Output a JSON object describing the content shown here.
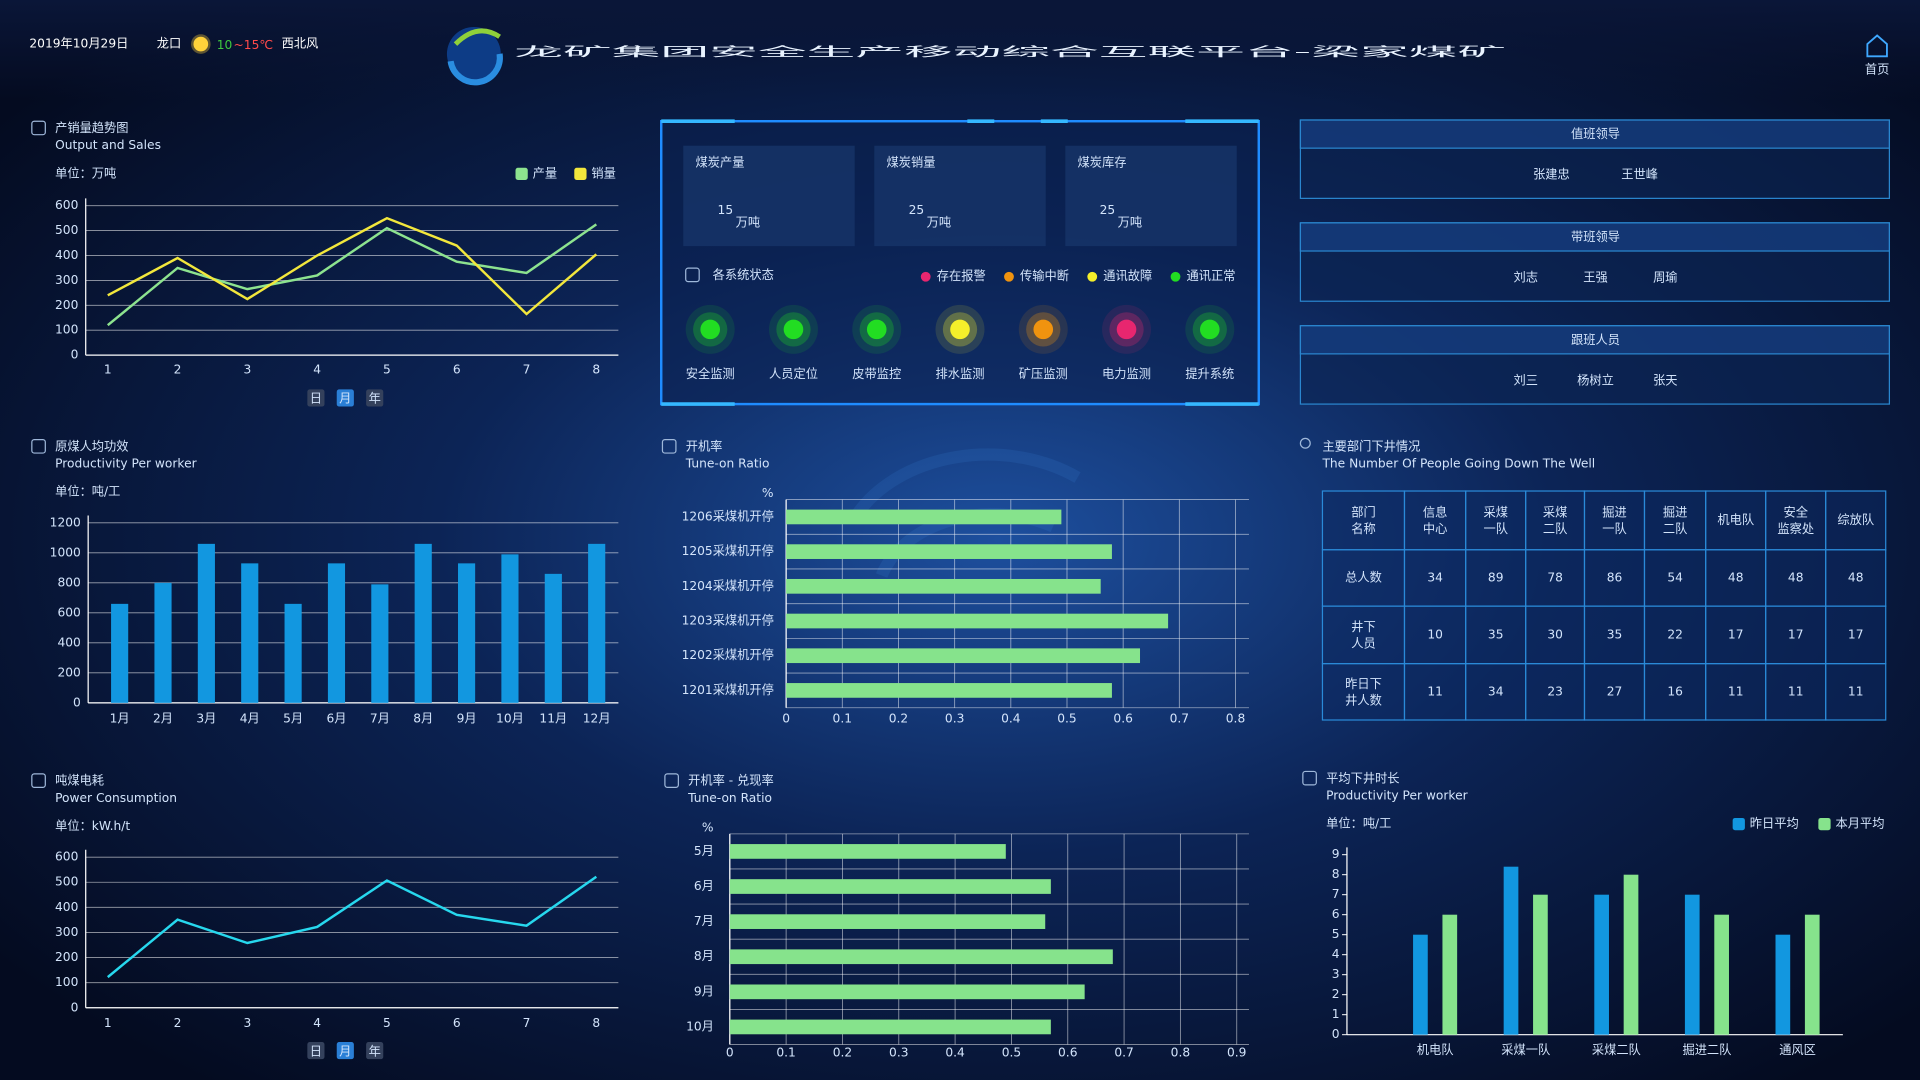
{
  "header": {
    "date": "2019年10月29日",
    "city": "龙口",
    "temp_low": "10",
    "temp_high": "~15℃",
    "wind": "西北风",
    "title": "龙矿集团安全生产移动综合互联平台-梁家煤矿",
    "home": "首页"
  },
  "stats": [
    {
      "label": "煤炭产量",
      "value": 15,
      "unit": "万吨"
    },
    {
      "label": "煤炭销量",
      "value": 25,
      "unit": "万吨"
    },
    {
      "label": "煤炭库存",
      "value": 25,
      "unit": "万吨"
    }
  ],
  "status": {
    "title": "各系统状态",
    "legend": [
      {
        "name": "存在报警",
        "color": "#e8266f"
      },
      {
        "name": "传输中断",
        "color": "#f0930f"
      },
      {
        "name": "通讯故障",
        "color": "#f5ef2a"
      },
      {
        "name": "通讯正常",
        "color": "#22dd22"
      }
    ],
    "systems": [
      {
        "name": "安全监测",
        "color": "#22dd22"
      },
      {
        "name": "人员定位",
        "color": "#22dd22"
      },
      {
        "name": "皮带监控",
        "color": "#22dd22"
      },
      {
        "name": "排水监测",
        "color": "#f5ef2a"
      },
      {
        "name": "矿压监测",
        "color": "#f0930f"
      },
      {
        "name": "电力监测",
        "color": "#e8266f"
      },
      {
        "name": "提升系统",
        "color": "#22dd22"
      }
    ]
  },
  "duty": [
    {
      "title": "值班领导",
      "names": [
        "张建忠",
        "王世峰"
      ]
    },
    {
      "title": "带班领导",
      "names": [
        "刘志",
        "王强",
        "周瑜"
      ]
    },
    {
      "title": "跟班人员",
      "names": [
        "刘三",
        "杨树立",
        "张天"
      ]
    }
  ],
  "dept_table": {
    "title": "主要部门下井情况",
    "subtitle": "The Number Of People Going Down The Well",
    "header": [
      "部门名称",
      "信息中心",
      "采煤一队",
      "采煤二队",
      "掘进一队",
      "掘进二队",
      "机电队",
      "安全监察处",
      "综放队"
    ],
    "rows": [
      [
        "总人数",
        34,
        89,
        78,
        86,
        54,
        48,
        48,
        48
      ],
      [
        "井下人员",
        10,
        35,
        30,
        35,
        22,
        17,
        17,
        17
      ],
      [
        "昨日下井人数",
        11,
        34,
        23,
        27,
        16,
        11,
        11,
        11
      ]
    ]
  },
  "chart_data": [
    {
      "type": "line",
      "title": "产销量趋势图",
      "subtitle": "Output and Sales",
      "unit": "单位：万吨",
      "categories": [
        "1",
        "2",
        "3",
        "4",
        "5",
        "6",
        "7",
        "8"
      ],
      "series": [
        {
          "name": "产量",
          "color": "#8de38f",
          "values": [
            120,
            350,
            265,
            320,
            510,
            375,
            330,
            525
          ]
        },
        {
          "name": "销量",
          "color": "#f2e73c",
          "values": [
            240,
            390,
            225,
            400,
            550,
            440,
            165,
            405
          ]
        }
      ],
      "ylim": [
        0,
        600
      ],
      "yticks": [
        0,
        100,
        200,
        300,
        400,
        500,
        600
      ],
      "grid": true,
      "legend": "top-right",
      "buttons": [
        "日",
        "月",
        "年"
      ],
      "active_button": 1
    },
    {
      "type": "bar",
      "title": "原煤人均功效",
      "subtitle": "Productivity Per worker",
      "unit": "单位：吨/工",
      "categories": [
        "1月",
        "2月",
        "3月",
        "4月",
        "5月",
        "6月",
        "7月",
        "8月",
        "9月",
        "10月",
        "11月",
        "12月"
      ],
      "values": [
        660,
        800,
        1060,
        930,
        660,
        930,
        790,
        1060,
        930,
        990,
        860,
        1060
      ],
      "color": "#1297e0",
      "ylim": [
        0,
        1200
      ],
      "yticks": [
        0,
        200,
        400,
        600,
        800,
        1000,
        1200
      ],
      "grid": true
    },
    {
      "type": "line",
      "title": "吨煤电耗",
      "subtitle": "Power Consumption",
      "unit": "单位：kW.h/t",
      "categories": [
        "1",
        "2",
        "3",
        "4",
        "5",
        "6",
        "7",
        "8"
      ],
      "values": [
        122,
        351,
        258,
        322,
        507,
        370,
        327,
        522
      ],
      "color": "#27d8ee",
      "ylim": [
        0,
        600
      ],
      "yticks": [
        0,
        100,
        200,
        300,
        400,
        500,
        600
      ],
      "grid": true,
      "buttons": [
        "日",
        "月",
        "年"
      ],
      "active_button": 1
    },
    {
      "type": "bar",
      "orientation": "horizontal",
      "title": "开机率",
      "subtitle": "Tune-on Ratio",
      "y_label": "%",
      "categories": [
        "1206采煤机开停",
        "1205采煤机开停",
        "1204采煤机开停",
        "1203采煤机开停",
        "1202采煤机开停",
        "1201采煤机开停"
      ],
      "values": [
        0.49,
        0.58,
        0.56,
        0.68,
        0.63,
        0.58
      ],
      "color": "#86e38c",
      "xlim": [
        0,
        0.8
      ],
      "xticks": [
        0,
        0.1,
        0.2,
        0.3,
        0.4,
        0.5,
        0.6,
        0.7,
        0.8
      ],
      "grid": true
    },
    {
      "type": "bar",
      "orientation": "horizontal",
      "title": "开机率 - 兑现率",
      "subtitle": "Tune-on Ratio",
      "y_label": "%",
      "categories": [
        "5月",
        "6月",
        "7月",
        "8月",
        "9月",
        "10月"
      ],
      "values": [
        0.49,
        0.57,
        0.56,
        0.68,
        0.63,
        0.57
      ],
      "color": "#86e38c",
      "xlim": [
        0,
        0.9
      ],
      "xticks": [
        0,
        0.1,
        0.2,
        0.3,
        0.4,
        0.5,
        0.6,
        0.7,
        0.8,
        0.9
      ],
      "grid": true
    },
    {
      "type": "bar",
      "title": "平均下井时长",
      "subtitle": "Productivity Per worker",
      "unit": "单位：吨/工",
      "categories": [
        "机电队",
        "采煤一队",
        "采煤二队",
        "掘进二队",
        "通风区"
      ],
      "series": [
        {
          "name": "昨日平均",
          "color": "#1297e0",
          "values": [
            5,
            8.4,
            7,
            7,
            5
          ]
        },
        {
          "name": "本月平均",
          "color": "#86e38c",
          "values": [
            6,
            7,
            8,
            6,
            6
          ]
        }
      ],
      "ylim": [
        0,
        9
      ],
      "yticks": [
        0,
        1,
        2,
        3,
        4,
        5,
        6,
        7,
        8,
        9
      ],
      "grid": false,
      "legend": "top-right"
    }
  ]
}
